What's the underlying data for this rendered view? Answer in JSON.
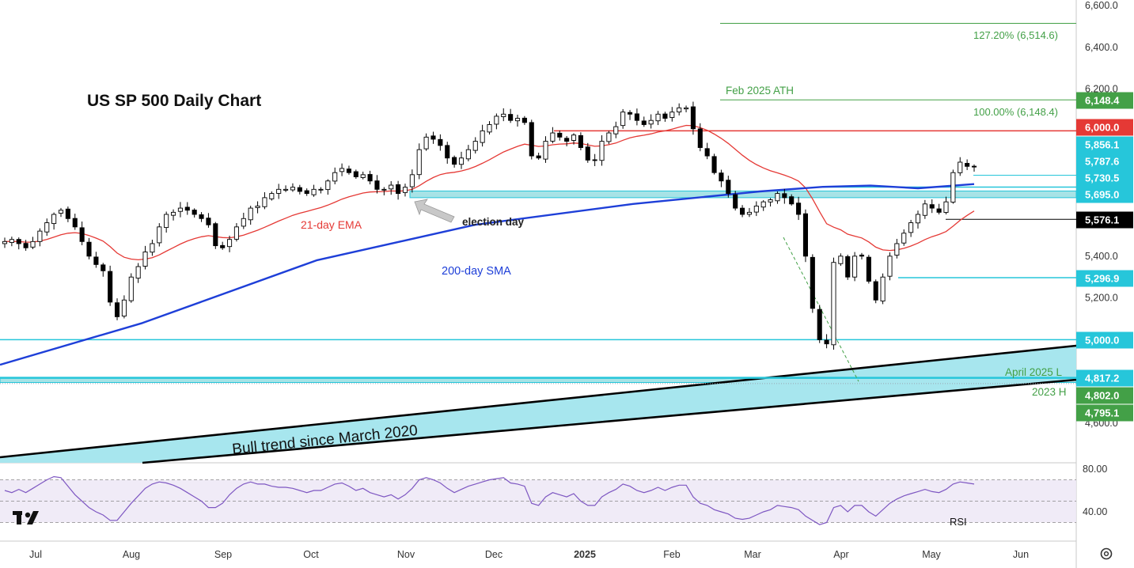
{
  "chart_data": {
    "type": "candlestick",
    "title": "US SP 500 Daily Chart",
    "y_axis": {
      "position": "right",
      "ylim": [
        4400,
        6600
      ],
      "tick_labels": [
        "6,600.0",
        "6,400.0",
        "6,200.0",
        "5,400.0",
        "5,200.0",
        "4,600.0"
      ],
      "tick_values": [
        6600,
        6400,
        6200,
        5400,
        5200,
        4600
      ]
    },
    "x_axis": {
      "tick_labels": [
        "Jul",
        "Aug",
        "Sep",
        "Oct",
        "Nov",
        "Dec",
        "2025",
        "Feb",
        "Mar",
        "Apr",
        "May",
        "Jun"
      ]
    },
    "price_labels": [
      {
        "text": "6,148.4",
        "value": 6148.4,
        "color": "#43a047"
      },
      {
        "text": "6,000.0",
        "value": 6000.0,
        "color": "#e53935"
      },
      {
        "text": "5,856.1",
        "value": 5856.1,
        "color": "#26c6da"
      },
      {
        "text": "5,787.6",
        "value": 5787.6,
        "color": "#26c6da"
      },
      {
        "text": "5,730.5",
        "value": 5730.5,
        "color": "#26c6da"
      },
      {
        "text": "5,695.0",
        "value": 5695.0,
        "color": "#26c6da"
      },
      {
        "text": "5,576.1",
        "value": 5576.1,
        "color": "#000000"
      },
      {
        "text": "5,296.9",
        "value": 5296.9,
        "color": "#26c6da"
      },
      {
        "text": "5,000.0",
        "value": 5000.0,
        "color": "#26c6da"
      },
      {
        "text": "4,817.2",
        "value": 4817.2,
        "color": "#26c6da"
      },
      {
        "text": "4,802.0",
        "value": 4802.0,
        "color": "#43a047"
      },
      {
        "text": "4,795.1",
        "value": 4795.1,
        "color": "#43a047"
      }
    ],
    "annotations": {
      "fib_127": "127.20% (6,514.6)",
      "fib_100": "100.00% (6,148.4)",
      "feb_ath": "Feb 2025 ATH",
      "ema_label": "21-day EMA",
      "sma_label": "200-day SMA",
      "election": "election day",
      "april_low": "April 2025 L",
      "h2023": "2023 H",
      "bull_trend": "Bull trend since March 2020"
    },
    "close_series": [
      5470,
      5480,
      5460,
      5440,
      5470,
      5520,
      5560,
      5600,
      5620,
      5580,
      5540,
      5470,
      5400,
      5360,
      5330,
      5180,
      5110,
      5190,
      5300,
      5350,
      5420,
      5460,
      5540,
      5600,
      5610,
      5630,
      5620,
      5600,
      5580,
      5550,
      5450,
      5440,
      5480,
      5540,
      5580,
      5630,
      5640,
      5680,
      5700,
      5720,
      5720,
      5730,
      5710,
      5700,
      5720,
      5720,
      5760,
      5800,
      5820,
      5800,
      5780,
      5790,
      5760,
      5720,
      5720,
      5740,
      5700,
      5730,
      5790,
      5910,
      5970,
      5960,
      5930,
      5870,
      5840,
      5870,
      5910,
      5950,
      6000,
      6030,
      6070,
      6080,
      6050,
      6060,
      6040,
      5880,
      5870,
      5950,
      5990,
      5970,
      5950,
      5980,
      5920,
      5860,
      5860,
      5950,
      5990,
      6020,
      6090,
      6080,
      6050,
      6030,
      6050,
      6080,
      6060,
      6090,
      6110,
      6110,
      6010,
      5920,
      5880,
      5800,
      5760,
      5700,
      5630,
      5600,
      5610,
      5640,
      5660,
      5670,
      5700,
      5680,
      5650,
      5600,
      5400,
      5150,
      5000,
      4980,
      5370,
      5400,
      5300,
      5400,
      5400,
      5280,
      5190,
      5300,
      5400,
      5460,
      5510,
      5560,
      5600,
      5650,
      5630,
      5610,
      5660,
      5800,
      5850,
      5830,
      5830
    ],
    "rsi": {
      "label": "RSI",
      "tick_labels": [
        "80.00",
        "40.00"
      ],
      "tick_values": [
        80,
        40
      ],
      "levels": [
        70,
        50,
        30
      ],
      "values": [
        60,
        58,
        61,
        58,
        62,
        66,
        70,
        73,
        72,
        64,
        56,
        50,
        44,
        40,
        37,
        32,
        32,
        40,
        48,
        55,
        62,
        66,
        68,
        67,
        65,
        62,
        58,
        54,
        50,
        44,
        44,
        48,
        56,
        62,
        66,
        68,
        66,
        66,
        64,
        63,
        63,
        62,
        60,
        58,
        60,
        60,
        63,
        66,
        67,
        64,
        60,
        62,
        58,
        56,
        54,
        56,
        52,
        56,
        62,
        70,
        72,
        70,
        67,
        62,
        58,
        61,
        64,
        66,
        68,
        70,
        71,
        72,
        67,
        66,
        64,
        48,
        46,
        54,
        58,
        56,
        54,
        57,
        50,
        46,
        46,
        54,
        58,
        61,
        66,
        64,
        60,
        58,
        60,
        63,
        60,
        63,
        65,
        65,
        54,
        48,
        46,
        42,
        40,
        38,
        34,
        33,
        34,
        37,
        40,
        42,
        46,
        45,
        44,
        42,
        36,
        32,
        28,
        30,
        44,
        46,
        40,
        46,
        46,
        40,
        36,
        42,
        48,
        52,
        55,
        57,
        59,
        61,
        59,
        58,
        61,
        66,
        68,
        67,
        66
      ]
    },
    "levels": {
      "h6000": 6000,
      "h5576": 5576.1,
      "h5296": 5296.9,
      "h5000": 5000,
      "h4817": 4817.2,
      "fib127": 6514.6,
      "fib100": 6148.4,
      "zone_top": 5712,
      "zone_bottom": 5680
    }
  }
}
